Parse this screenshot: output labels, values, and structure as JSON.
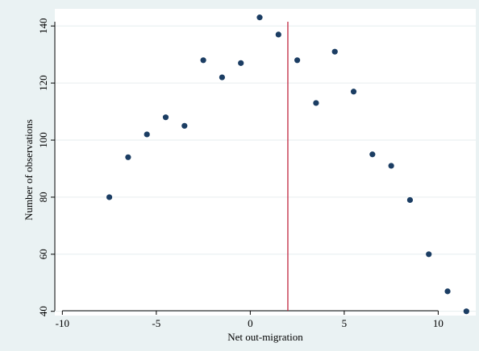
{
  "chart_data": {
    "type": "scatter",
    "title": "",
    "xlabel": "Net out-migration",
    "ylabel": "Number of observations",
    "xlim": [
      -10.4,
      12
    ],
    "ylim": [
      38.5,
      146
    ],
    "x_ticks": [
      -10,
      -5,
      0,
      5,
      10
    ],
    "y_ticks": [
      40,
      60,
      80,
      100,
      120,
      140
    ],
    "grid": true,
    "reference_line": {
      "x": 2,
      "color": "#c0253f"
    },
    "marker_color": "#1b3d63",
    "series": [
      {
        "points": [
          [
            -7.5,
            80
          ],
          [
            -6.5,
            94
          ],
          [
            -5.5,
            102
          ],
          [
            -4.5,
            108
          ],
          [
            -3.5,
            105
          ],
          [
            -2.5,
            128
          ],
          [
            -1.5,
            122
          ],
          [
            -0.5,
            127
          ],
          [
            0.5,
            143
          ],
          [
            1.5,
            137
          ],
          [
            2.5,
            128
          ],
          [
            3.5,
            113
          ],
          [
            4.5,
            131
          ],
          [
            5.5,
            117
          ],
          [
            6.5,
            95
          ],
          [
            7.5,
            91
          ],
          [
            8.5,
            79
          ],
          [
            9.5,
            60
          ],
          [
            10.5,
            47
          ],
          [
            11.5,
            40
          ]
        ]
      }
    ]
  }
}
